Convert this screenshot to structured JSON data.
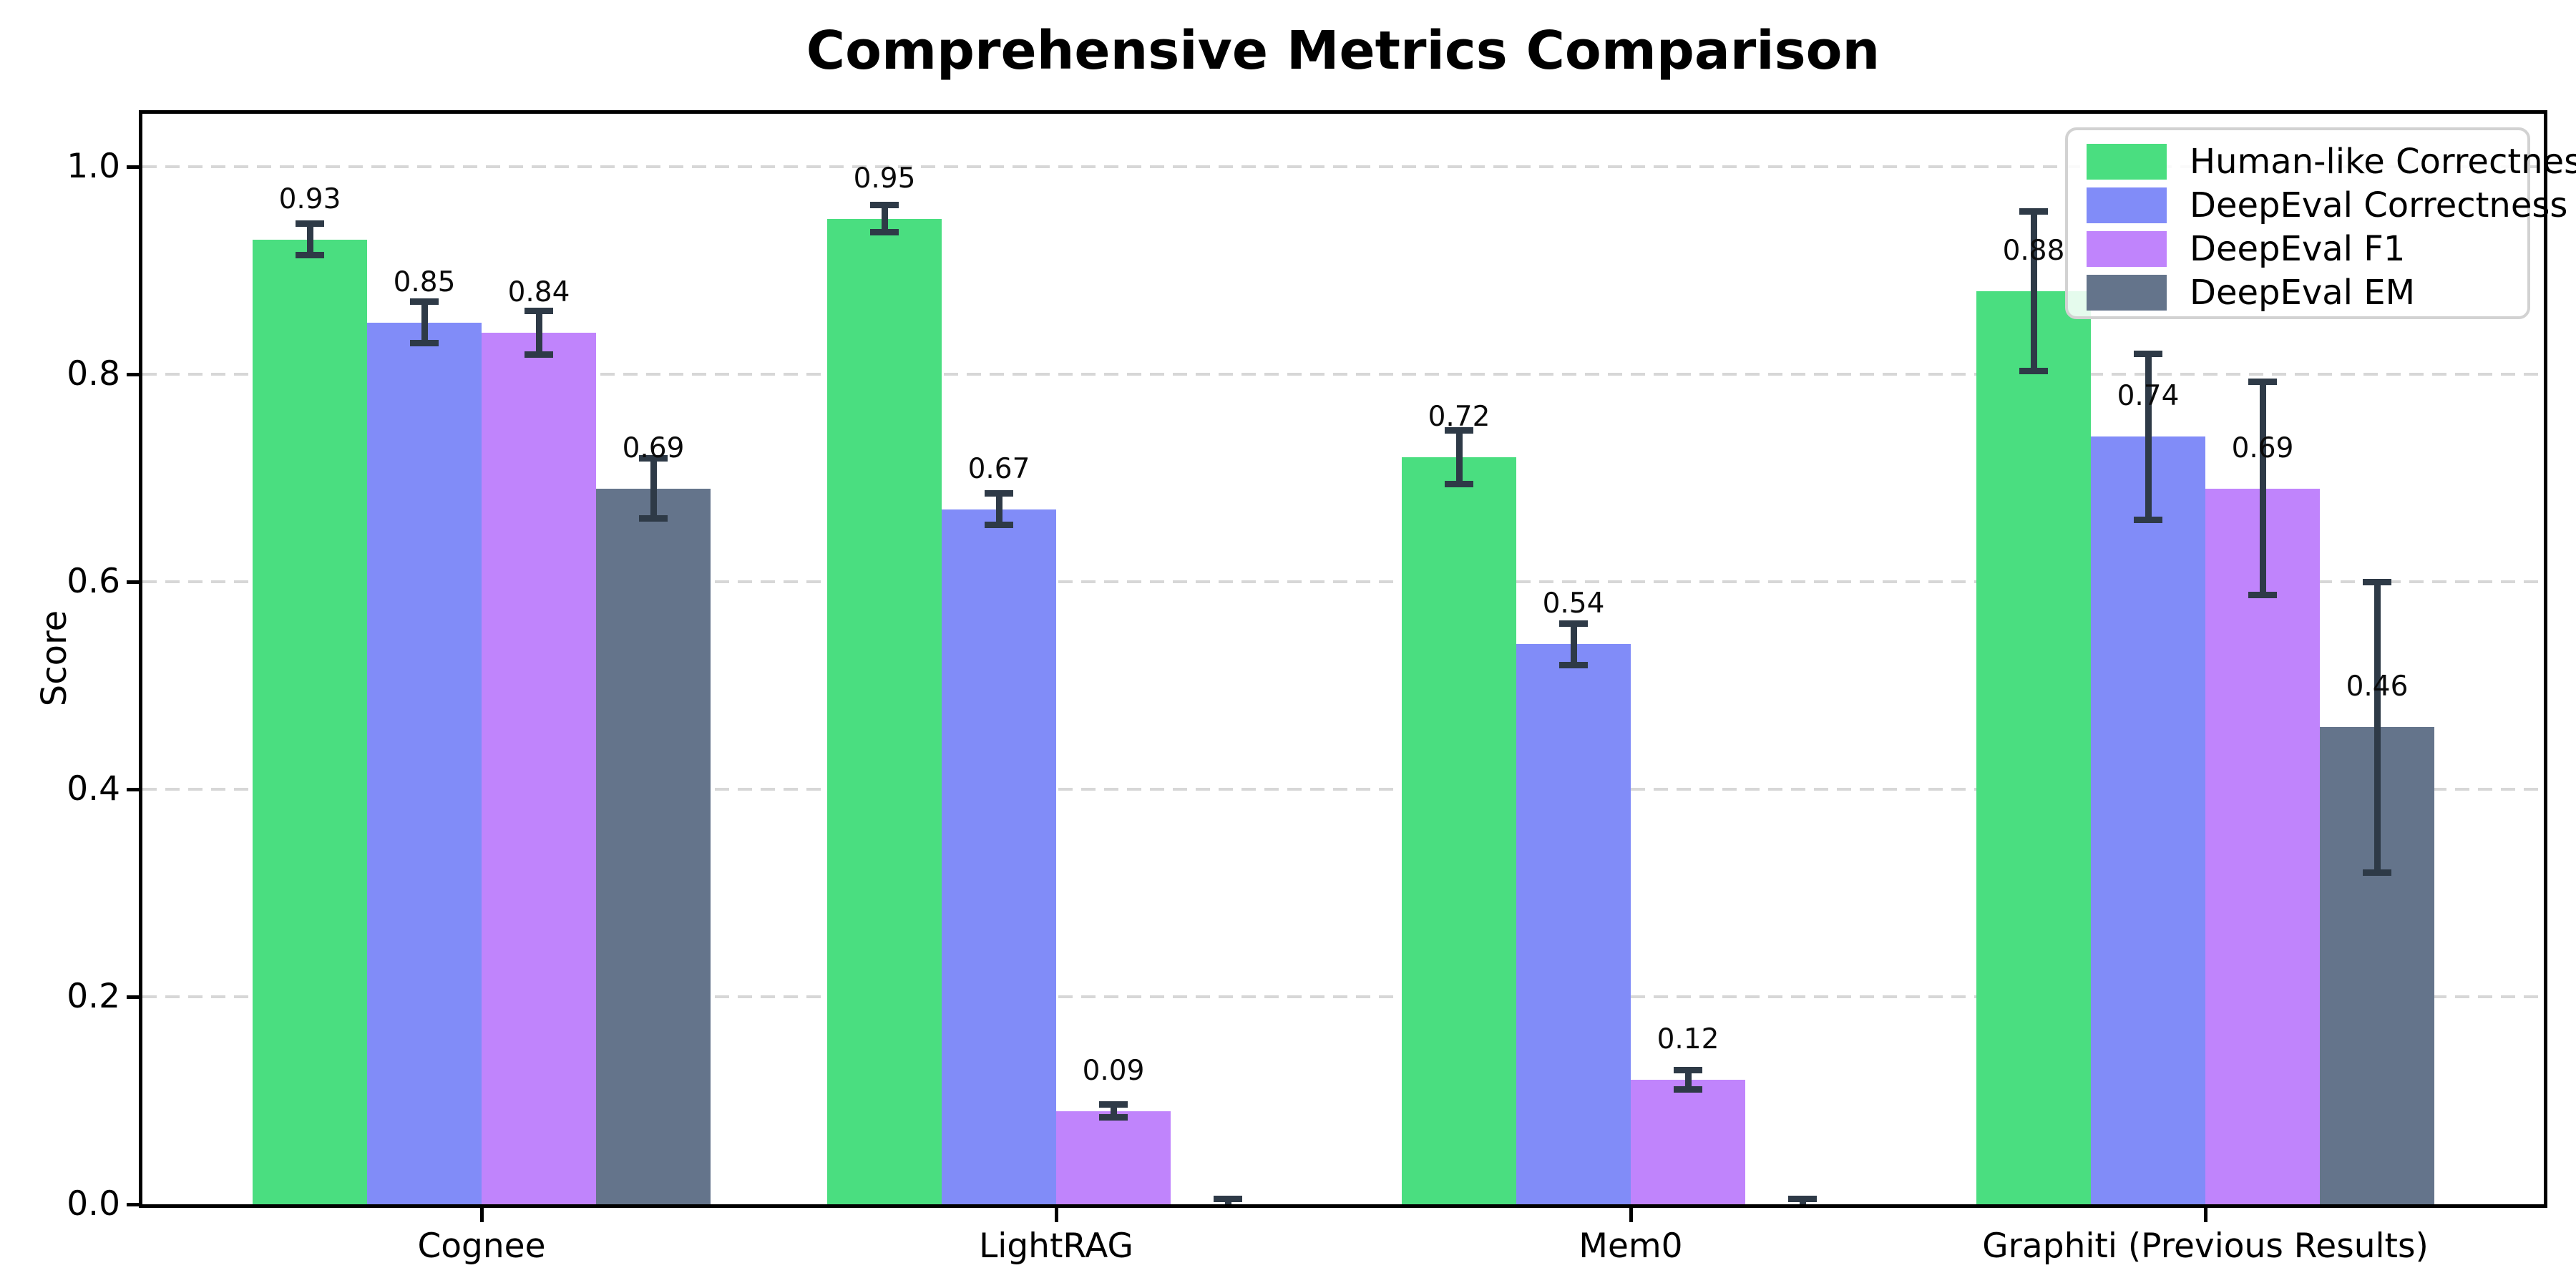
{
  "chart_data": {
    "type": "bar",
    "title": "Comprehensive Metrics Comparison",
    "ylabel": "Score",
    "xlabel": "",
    "categories": [
      "Cognee",
      "LightRAG",
      "Mem0",
      "Graphiti (Previous Results)"
    ],
    "series": [
      {
        "name": "Human-like Correctness",
        "color": "#4ade80",
        "values": [
          0.93,
          0.95,
          0.72,
          0.88
        ],
        "errors": [
          0.015,
          0.013,
          0.026,
          0.077
        ],
        "labels": [
          "0.93",
          "0.95",
          "0.72",
          "0.88"
        ]
      },
      {
        "name": "DeepEval Correctness",
        "color": "#818cf8",
        "values": [
          0.85,
          0.67,
          0.54,
          0.74
        ],
        "errors": [
          0.02,
          0.015,
          0.02,
          0.08
        ],
        "labels": [
          "0.85",
          "0.67",
          "0.54",
          "0.74"
        ]
      },
      {
        "name": "DeepEval F1",
        "color": "#c084fc",
        "values": [
          0.84,
          0.09,
          0.12,
          0.69
        ],
        "errors": [
          0.021,
          0.006,
          0.009,
          0.103
        ],
        "labels": [
          "0.84",
          "0.09",
          "0.12",
          "0.69"
        ]
      },
      {
        "name": "DeepEval EM",
        "color": "#64748b",
        "values": [
          0.69,
          0.0,
          0.0,
          0.46
        ],
        "errors": [
          0.029,
          0.005,
          0.005,
          0.14
        ],
        "labels": [
          "0.69",
          null,
          null,
          "0.46"
        ]
      }
    ],
    "yticks": [
      "0.0",
      "0.2",
      "0.4",
      "0.6",
      "0.8",
      "1.0"
    ],
    "ytick_values": [
      0.0,
      0.2,
      0.4,
      0.6,
      0.8,
      1.0
    ],
    "ylim": [
      0,
      1.05
    ],
    "grid": "horizontal-dashed",
    "legend_position": "upper-right",
    "error_bar_color": "#2e3a47",
    "axis_color": "#000000",
    "gridline_color": "#d7d7d7",
    "background_color": "#ffffff"
  }
}
